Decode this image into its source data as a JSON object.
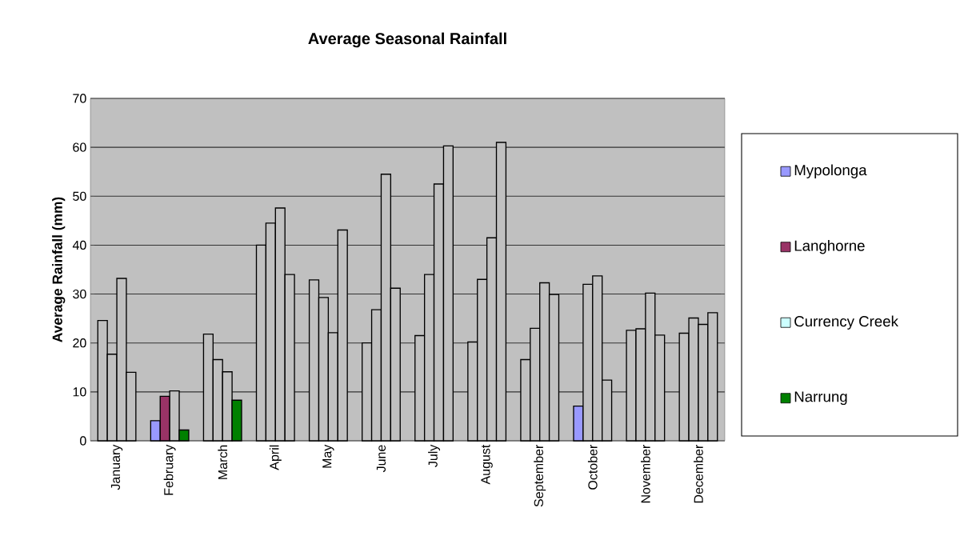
{
  "chart_data": {
    "type": "bar",
    "title": "Average Seasonal Rainfall",
    "ylabel": "Average Rainfall (mm)",
    "categories": [
      "January",
      "February",
      "March",
      "April",
      "May",
      "June",
      "July",
      "August",
      "September",
      "October",
      "November",
      "December"
    ],
    "series": [
      {
        "name": "Mypolonga",
        "color": "#9999ff",
        "colors": [
          "#c0c0c0",
          "#9999ff",
          "#c0c0c0",
          "#c0c0c0",
          "#c0c0c0",
          "#c0c0c0",
          "#c0c0c0",
          "#c0c0c0",
          "#c0c0c0",
          "#9999ff",
          "#c0c0c0",
          "#c0c0c0"
        ],
        "values": [
          24.6,
          4.1,
          21.8,
          40.0,
          32.9,
          20.0,
          21.5,
          20.2,
          16.6,
          7.1,
          22.6,
          22.0
        ]
      },
      {
        "name": "Langhorne",
        "color": "#993366",
        "colors": [
          "#c0c0c0",
          "#993366",
          "#c0c0c0",
          "#c0c0c0",
          "#c0c0c0",
          "#c0c0c0",
          "#c0c0c0",
          "#c0c0c0",
          "#c0c0c0",
          "#c0c0c0",
          "#c0c0c0",
          "#c0c0c0"
        ],
        "values": [
          17.7,
          9.1,
          16.6,
          44.5,
          29.3,
          26.8,
          34.0,
          33.0,
          23.0,
          32.0,
          22.9,
          25.1
        ]
      },
      {
        "name": "Currency Creek",
        "color": "#ccffff",
        "colors": [
          "#c0c0c0",
          "#c0c0c0",
          "#c0c0c0",
          "#c0c0c0",
          "#c0c0c0",
          "#c0c0c0",
          "#c0c0c0",
          "#c0c0c0",
          "#c0c0c0",
          "#c0c0c0",
          "#c0c0c0",
          "#c0c0c0"
        ],
        "values": [
          33.2,
          10.2,
          14.1,
          47.6,
          22.1,
          54.5,
          52.5,
          41.5,
          32.3,
          33.7,
          30.2,
          23.8
        ]
      },
      {
        "name": "Narrung",
        "color": "#008000",
        "colors": [
          "#c0c0c0",
          "#008000",
          "#008000",
          "#c0c0c0",
          "#c0c0c0",
          "#c0c0c0",
          "#c0c0c0",
          "#c0c0c0",
          "#c0c0c0",
          "#c0c0c0",
          "#c0c0c0",
          "#c0c0c0"
        ],
        "values": [
          14.0,
          2.2,
          8.3,
          34.0,
          43.1,
          31.2,
          60.3,
          61.0,
          29.9,
          12.4,
          21.6,
          26.2
        ]
      }
    ],
    "ylim": [
      0,
      70
    ],
    "yticks": [
      0,
      10,
      20,
      30,
      40,
      50,
      60,
      70
    ],
    "grid": "y",
    "legend": "right"
  }
}
